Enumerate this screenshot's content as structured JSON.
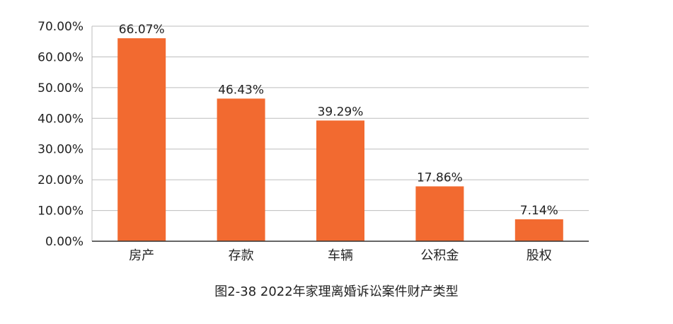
{
  "caption": "图2-38  2022年家理离婚诉讼案件财产类型",
  "chart_data": {
    "type": "bar",
    "title": "",
    "xlabel": "",
    "ylabel": "",
    "categories": [
      "房产",
      "存款",
      "车辆",
      "公积金",
      "股权"
    ],
    "values": [
      66.07,
      46.43,
      39.29,
      17.86,
      7.14
    ],
    "value_labels": [
      "66.07%",
      "46.43%",
      "39.29%",
      "17.86%",
      "7.14%"
    ],
    "ylim": [
      0,
      70
    ],
    "yticks": [
      0,
      10,
      20,
      30,
      40,
      50,
      60,
      70
    ],
    "ytick_labels": [
      "0.00%",
      "10.00%",
      "20.00%",
      "30.00%",
      "40.00%",
      "50.00%",
      "60.00%",
      "70.00%"
    ],
    "grid": true,
    "legend": "none",
    "colors": {
      "bar": "#f26a30",
      "grid": "#bdbdbd",
      "axis": "#333333",
      "text": "#222222"
    }
  }
}
